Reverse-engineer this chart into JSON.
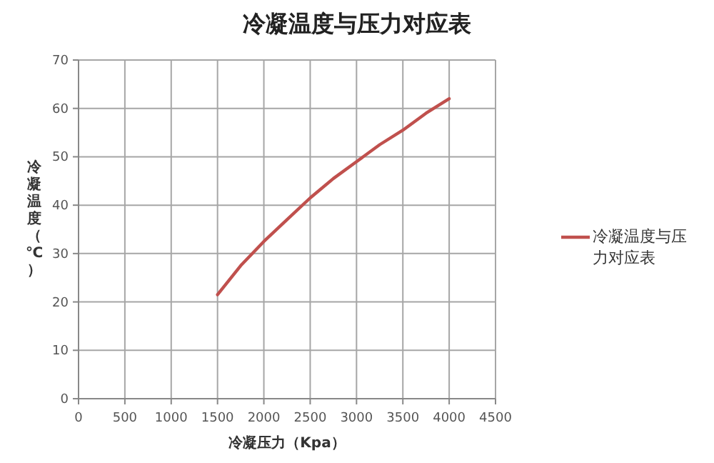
{
  "chart_data": {
    "type": "line",
    "title": "冷凝温度与压力对应表",
    "xlabel": "冷凝压力（Kpa）",
    "ylabel": "冷凝温度（℃）",
    "x": [
      1500,
      1750,
      2000,
      2250,
      2500,
      2750,
      3000,
      3250,
      3500,
      3750,
      4000
    ],
    "series": [
      {
        "name": "冷凝温度与压力对应表",
        "color": "#c0504d",
        "values": [
          21.5,
          27.5,
          32.5,
          37,
          41.5,
          45.5,
          49,
          52.5,
          55.5,
          59,
          62
        ]
      }
    ],
    "xlim": [
      0,
      4500
    ],
    "xticks": [
      0,
      500,
      1000,
      1500,
      2000,
      2500,
      3000,
      3500,
      4000,
      4500
    ],
    "ylim": [
      0,
      70
    ],
    "yticks": [
      0,
      10,
      20,
      30,
      40,
      50,
      60,
      70
    ],
    "grid": true,
    "legend": "right",
    "marker": "none",
    "line_style": "solid"
  }
}
